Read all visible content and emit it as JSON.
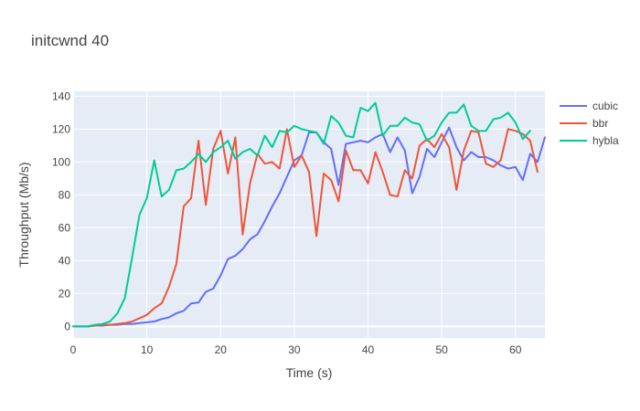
{
  "chart_data": {
    "type": "line",
    "title": "initcwnd 40",
    "xlabel": "Time (s)",
    "ylabel": "Throughput (Mb/s)",
    "xlim": [
      0,
      64
    ],
    "ylim": [
      -7,
      143
    ],
    "x_ticks": [
      0,
      10,
      20,
      30,
      40,
      50,
      60
    ],
    "y_ticks": [
      0,
      20,
      40,
      60,
      80,
      100,
      120,
      140
    ],
    "grid": true,
    "legend_position": "top-right",
    "background": "#e5ecf6",
    "series": [
      {
        "name": "cubic",
        "color": "#636efa",
        "x": [
          0,
          1,
          2,
          3,
          4,
          5,
          6,
          7,
          8,
          9,
          10,
          11,
          12,
          13,
          14,
          15,
          16,
          17,
          18,
          19,
          20,
          21,
          22,
          23,
          24,
          25,
          26,
          27,
          28,
          29,
          30,
          31,
          32,
          33,
          34,
          35,
          36,
          37,
          38,
          39,
          40,
          41,
          42,
          43,
          44,
          45,
          46,
          47,
          48,
          49,
          50,
          51,
          52,
          53,
          54,
          55,
          56,
          57,
          58,
          59,
          60,
          61,
          62,
          63,
          64
        ],
        "y": [
          0,
          0,
          0,
          0.5,
          0.5,
          1,
          1,
          1.5,
          1.5,
          2,
          2.5,
          3,
          4.5,
          5.5,
          8,
          9.5,
          14,
          14.5,
          21,
          23,
          31,
          41,
          43,
          47,
          53,
          56,
          64,
          73,
          81,
          91,
          101,
          104,
          118,
          118,
          112,
          108,
          86,
          111,
          112,
          113,
          112,
          115,
          117,
          106,
          115,
          107,
          81,
          91,
          108,
          103,
          112,
          121,
          109,
          101,
          106,
          103,
          103,
          101,
          98,
          96,
          97,
          89,
          105,
          100,
          115
        ]
      },
      {
        "name": "bbr",
        "color": "#ef553b",
        "x": [
          0,
          1,
          2,
          3,
          4,
          5,
          6,
          7,
          8,
          9,
          10,
          11,
          12,
          13,
          14,
          15,
          16,
          17,
          18,
          19,
          20,
          21,
          22,
          23,
          24,
          25,
          26,
          27,
          28,
          29,
          30,
          31,
          32,
          33,
          34,
          35,
          36,
          37,
          38,
          39,
          40,
          41,
          42,
          43,
          44,
          45,
          46,
          47,
          48,
          49,
          50,
          51,
          52,
          53,
          54,
          55,
          56,
          57,
          58,
          59,
          60,
          61,
          62,
          63
        ],
        "y": [
          0,
          0,
          0,
          0.5,
          1,
          1,
          1.5,
          2,
          3,
          5,
          7,
          11,
          14,
          24,
          38,
          73,
          78,
          113,
          74,
          108,
          119,
          93,
          115,
          56,
          87,
          105,
          99,
          100,
          96,
          120,
          97,
          104,
          94,
          55,
          93,
          89,
          76,
          107,
          95,
          95,
          87,
          106,
          94,
          80,
          79,
          95,
          90,
          110,
          114,
          109,
          117,
          109,
          83,
          107,
          119,
          118,
          99,
          97,
          101,
          120,
          119,
          117,
          113,
          94
        ]
      },
      {
        "name": "hybla",
        "color": "#00cc96",
        "x": [
          0,
          1,
          2,
          3,
          4,
          5,
          6,
          7,
          8,
          9,
          10,
          11,
          12,
          13,
          14,
          15,
          16,
          17,
          18,
          19,
          20,
          21,
          22,
          23,
          24,
          25,
          26,
          27,
          28,
          29,
          30,
          31,
          32,
          33,
          34,
          35,
          36,
          37,
          38,
          39,
          40,
          41,
          42,
          43,
          44,
          45,
          46,
          47,
          48,
          49,
          50,
          51,
          52,
          53,
          54,
          55,
          56,
          57,
          58,
          59,
          60,
          61,
          62
        ],
        "y": [
          0,
          0,
          0,
          1,
          1.5,
          3,
          8,
          17,
          42,
          68,
          78,
          101,
          79,
          83,
          95,
          96,
          100,
          105,
          100,
          106,
          109,
          113,
          102,
          106,
          108,
          104,
          116,
          109,
          119,
          118,
          122,
          120,
          119,
          118,
          111,
          128,
          124,
          116,
          115,
          133,
          131,
          136,
          116,
          122,
          122,
          127,
          124,
          123,
          113,
          116,
          124,
          130,
          130,
          135,
          122,
          119,
          119,
          126,
          127,
          130,
          124,
          114,
          119
        ]
      }
    ]
  }
}
